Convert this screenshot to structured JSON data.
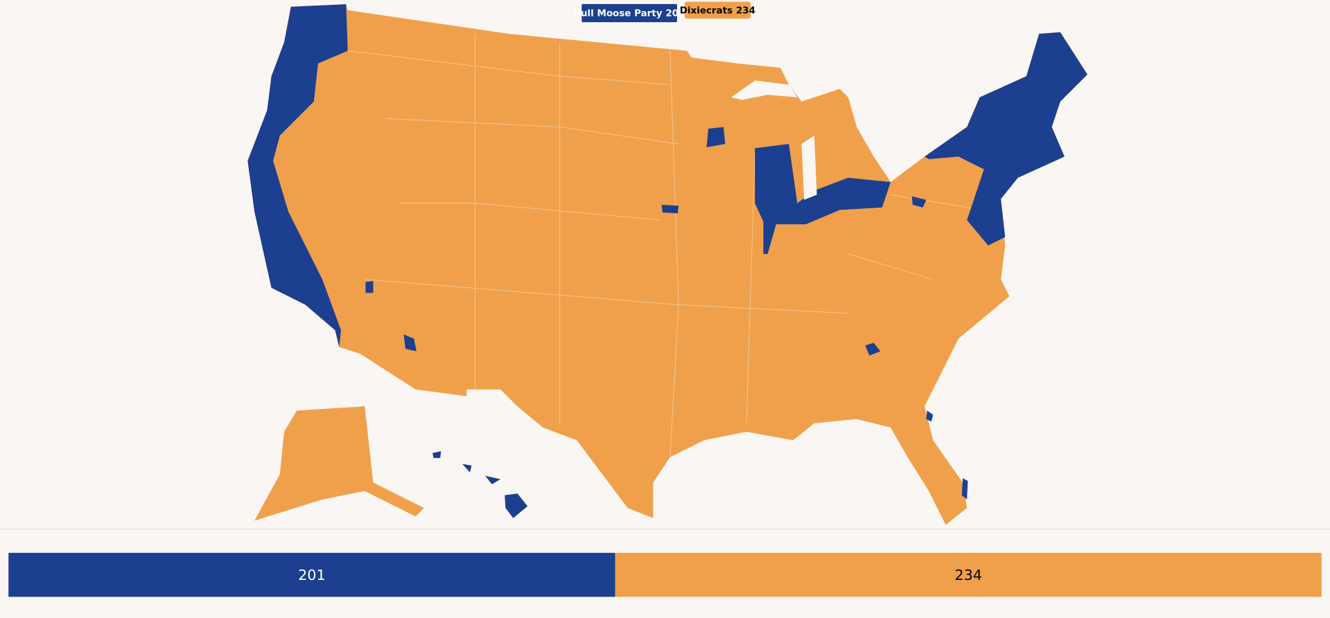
{
  "parties": [
    {
      "name": "Bull Moose Party",
      "seats": 201,
      "color": "#1c3f8f"
    },
    {
      "name": "Dixiecrats",
      "seats": 234,
      "color": "#f0a04b"
    }
  ]
}
